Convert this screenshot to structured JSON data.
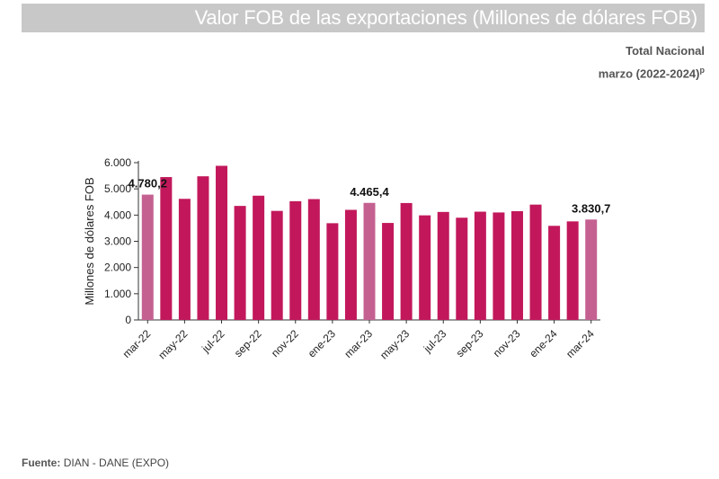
{
  "header": {
    "title": "Valor FOB de las exportaciones (Millones de dólares FOB)",
    "subtitle_1": "Total Nacional",
    "subtitle_2": "marzo (2022-2024)",
    "subtitle_2_sup": "p"
  },
  "source": {
    "label": "Fuente:",
    "text": "DIAN - DANE (EXPO)"
  },
  "colors": {
    "bar": "#c2185b",
    "highlight": "#c46191",
    "title_bg": "#c8c8c8"
  },
  "chart_data": {
    "type": "bar",
    "title": "Valor FOB de las exportaciones (Millones de dólares FOB)",
    "ylabel": "Millones de dólares FOB",
    "xlabel": "",
    "ylim": [
      0,
      6000
    ],
    "yticks": [
      0,
      1000,
      2000,
      3000,
      4000,
      5000,
      6000
    ],
    "ytick_labels": [
      "0",
      "1.000",
      "2.000",
      "3.000",
      "4.000",
      "5.000",
      "6.000"
    ],
    "categories": [
      "mar-22",
      "abr-22",
      "may-22",
      "jun-22",
      "jul-22",
      "ago-22",
      "sep-22",
      "oct-22",
      "nov-22",
      "dic-22",
      "ene-23",
      "feb-23",
      "mar-23",
      "abr-23",
      "may-23",
      "jun-23",
      "jul-23",
      "ago-23",
      "sep-23",
      "oct-23",
      "nov-23",
      "dic-23",
      "ene-24",
      "feb-24",
      "mar-24"
    ],
    "visible_xtick_labels": [
      "mar-22",
      "may-22",
      "jul-22",
      "sep-22",
      "nov-22",
      "ene-23",
      "mar-23",
      "may-23",
      "jul-23",
      "sep-23",
      "nov-23",
      "ene-24",
      "mar-24"
    ],
    "values": [
      4780.2,
      5450,
      4620,
      5480,
      5880,
      4350,
      4740,
      4160,
      4530,
      4610,
      3690,
      4200,
      4465.4,
      3700,
      4460,
      3990,
      4120,
      3900,
      4130,
      4100,
      4150,
      4400,
      3590,
      3760,
      3830.7
    ],
    "highlighted": [
      "mar-22",
      "mar-23",
      "mar-24"
    ],
    "data_labels": [
      {
        "category": "mar-22",
        "text": "4.780,2"
      },
      {
        "category": "mar-23",
        "text": "4.465,4"
      },
      {
        "category": "mar-24",
        "text": "3.830,7"
      }
    ],
    "grid": false,
    "legend": "none"
  }
}
